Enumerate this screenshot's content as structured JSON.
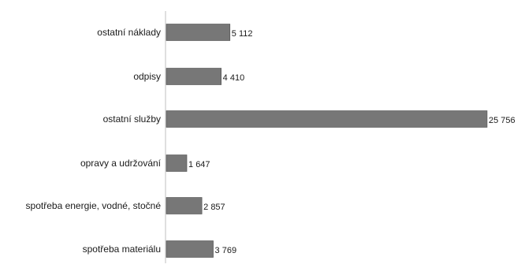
{
  "chart_data": {
    "type": "bar",
    "orientation": "horizontal",
    "categories": [
      "ostatní náklady",
      "odpisy",
      "ostatní služby",
      "opravy a udržování",
      "spotřeba energie, vodné, stočné",
      "spotřeba materiálu"
    ],
    "values": [
      5112,
      4410,
      25756,
      1647,
      2857,
      3769
    ],
    "value_labels": [
      "5 112",
      "4 410",
      "25 756",
      "1 647",
      "2 857",
      "3 769"
    ],
    "xlim": [
      0,
      25756
    ],
    "grid": false,
    "legend": "none",
    "bar_color": "#777777",
    "bar_edge_color": "#4d4d4d",
    "axis_color": "#bfbfbf"
  }
}
